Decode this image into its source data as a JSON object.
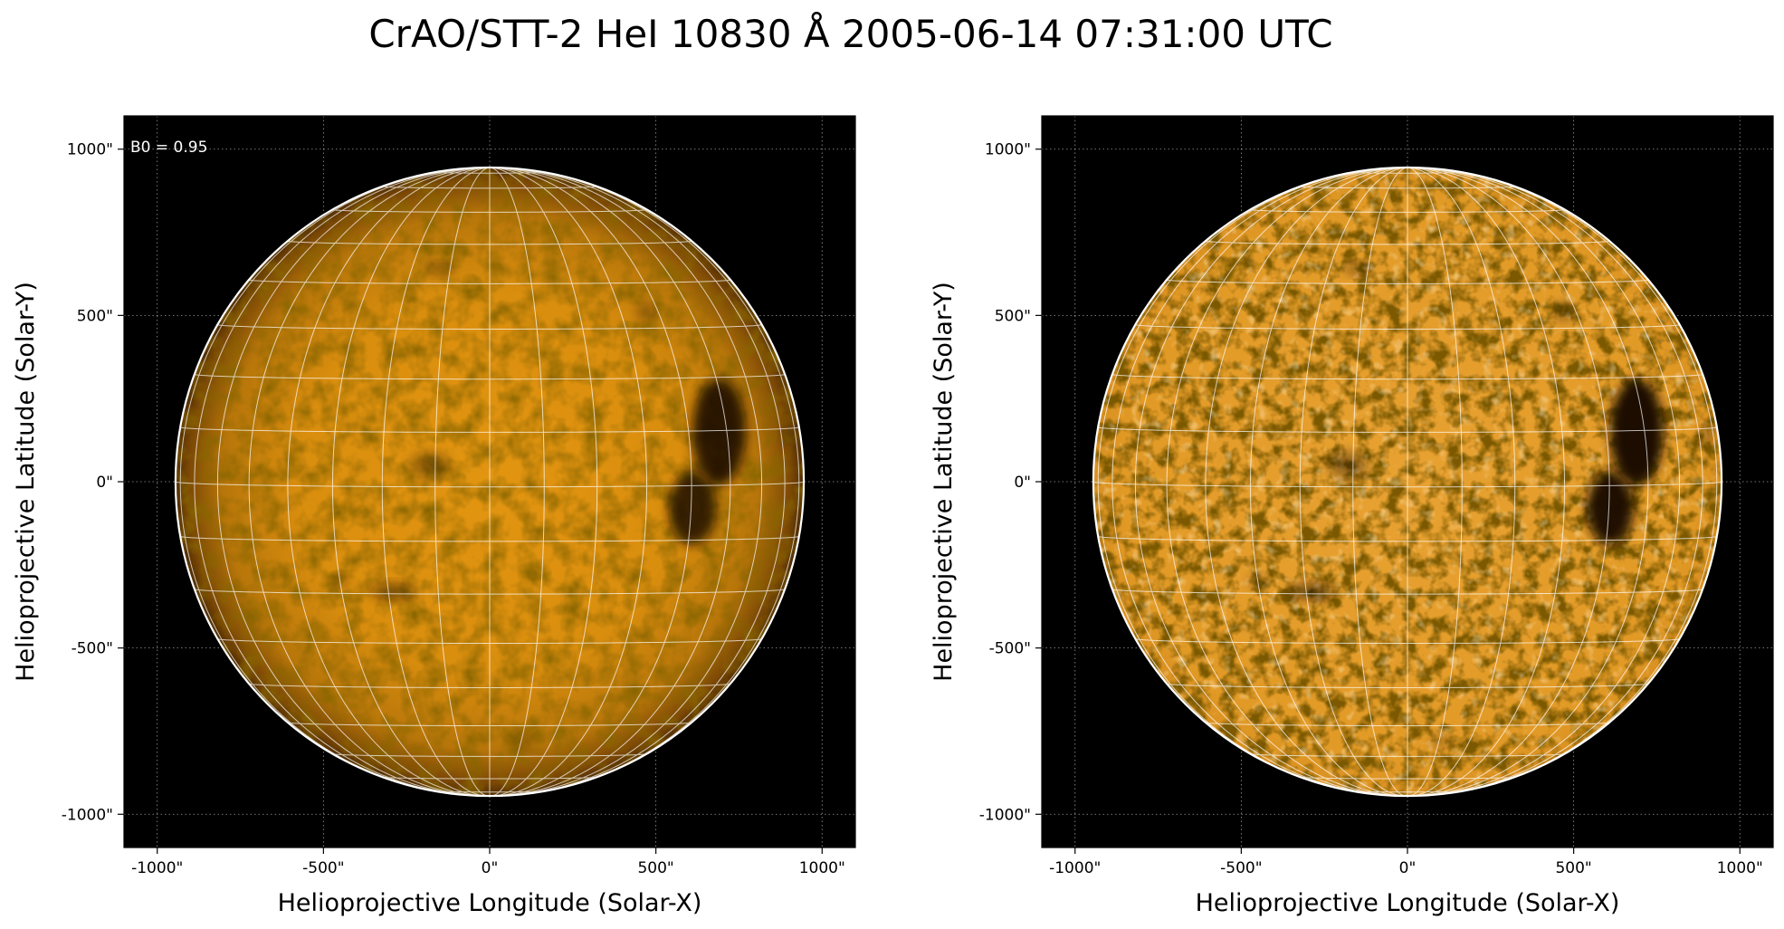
{
  "figure": {
    "title": "CrAO/STT-2 HeI 10830 Å 2005-06-14 07:31:00 UTC"
  },
  "panels": [
    {
      "id": "left",
      "variant": "limb-darkened",
      "annotation": "B0 = 0.95",
      "xlabel": "Helioprojective Longitude (Solar-X)",
      "ylabel": "Helioprojective Latitude (Solar-Y)"
    },
    {
      "id": "right",
      "variant": "limb-corrected",
      "annotation": "",
      "xlabel": "Helioprojective Longitude (Solar-X)",
      "ylabel": "Helioprojective Latitude (Solar-Y)"
    }
  ],
  "axes": {
    "x_range_arcsec": [
      -1100,
      1100
    ],
    "y_range_arcsec": [
      -1100,
      1100
    ],
    "x_ticks": [
      -1000,
      -500,
      0,
      500,
      1000
    ],
    "y_ticks": [
      -1000,
      -500,
      0,
      500,
      1000
    ],
    "x_tick_labels": [
      "-1000\"",
      "-500\"",
      "0\"",
      "500\"",
      "1000\""
    ],
    "y_tick_labels": [
      "-1000\"",
      "-500\"",
      "0\"",
      "500\"",
      "1000\""
    ]
  },
  "solar_disk": {
    "radius_arcsec": 945,
    "b0_deg": 0.95,
    "grid_spacing_deg": 10
  },
  "colors": {
    "background": "#000000",
    "disk_center": "#e29510",
    "disk_limb": "#5a3303",
    "disk_flat": "#e6a030",
    "limb_circle": "#ffffff",
    "heliographic_grid": "#ffffff"
  },
  "dark_features": [
    {
      "name": "active-region-north",
      "x": 690,
      "y": 150,
      "rx": 80,
      "ry": 160,
      "strength": 0.9
    },
    {
      "name": "active-region-south",
      "x": 610,
      "y": -80,
      "rx": 70,
      "ry": 110,
      "strength": 0.85
    },
    {
      "name": "filament-south",
      "x": -290,
      "y": -330,
      "rx": 70,
      "ry": 22,
      "strength": 0.55
    },
    {
      "name": "plage-center",
      "x": -180,
      "y": 50,
      "rx": 60,
      "ry": 40,
      "strength": 0.35
    },
    {
      "name": "spot-northwest",
      "x": 470,
      "y": 510,
      "rx": 25,
      "ry": 25,
      "strength": 0.4
    },
    {
      "name": "filament-north",
      "x": -150,
      "y": 640,
      "rx": 40,
      "ry": 16,
      "strength": 0.4
    },
    {
      "name": "spot-west-limb",
      "x": 900,
      "y": 140,
      "rx": 18,
      "ry": 30,
      "strength": 0.35
    },
    {
      "name": "spot-southeast",
      "x": -450,
      "y": -300,
      "rx": 25,
      "ry": 18,
      "strength": 0.35
    },
    {
      "name": "spot-south",
      "x": 100,
      "y": -780,
      "rx": 30,
      "ry": 20,
      "strength": 0.25
    }
  ]
}
